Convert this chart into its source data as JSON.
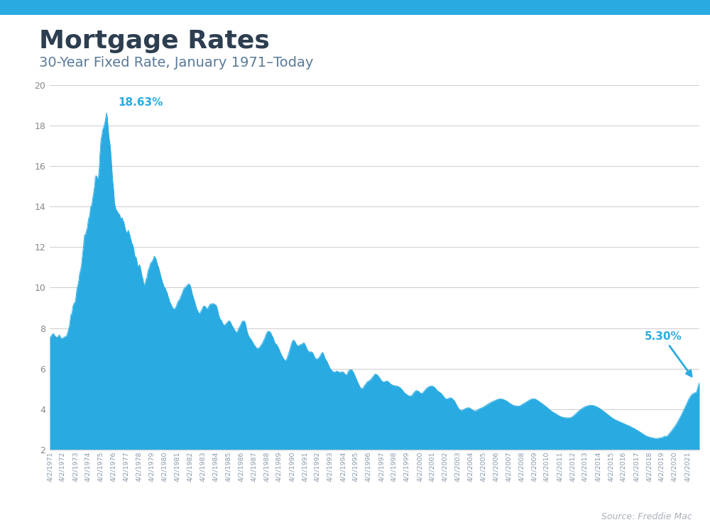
{
  "title": "Mortgage Rates",
  "subtitle": "30-Year Fixed Rate, January 1971–Today",
  "source": "Source: Freddie Mac",
  "fill_color": "#29ABE2",
  "line_color": "#29ABE2",
  "annotation_color": "#29ABE2",
  "title_color": "#2d3e50",
  "subtitle_color": "#5a7a99",
  "background_color": "#ffffff",
  "top_bar_color": "#29ABE2",
  "ylim": [
    2,
    20
  ],
  "yticks": [
    2,
    4,
    6,
    8,
    10,
    12,
    14,
    16,
    18,
    20
  ],
  "peak_label": "18.63%",
  "end_label": "5.30%",
  "rates": [
    7.54,
    7.54,
    7.59,
    7.66,
    7.68,
    7.71,
    7.73,
    7.65,
    7.61,
    7.58,
    7.55,
    7.54,
    7.56,
    7.62,
    7.64,
    7.66,
    7.55,
    7.52,
    7.49,
    7.49,
    7.51,
    7.53,
    7.56,
    7.55,
    7.6,
    7.6,
    7.64,
    7.78,
    7.87,
    8.0,
    8.14,
    8.41,
    8.65,
    8.68,
    8.81,
    9.06,
    9.17,
    9.24,
    9.23,
    9.35,
    9.63,
    9.91,
    10.04,
    10.19,
    10.36,
    10.65,
    10.79,
    10.91,
    11.1,
    11.42,
    11.74,
    12.01,
    12.42,
    12.62,
    12.5,
    12.77,
    12.83,
    12.97,
    13.24,
    13.44,
    13.49,
    13.74,
    13.98,
    14.04,
    14.15,
    14.41,
    14.56,
    14.84,
    15.0,
    15.44,
    15.53,
    15.51,
    15.41,
    15.37,
    15.54,
    15.93,
    16.58,
    17.07,
    17.4,
    17.51,
    17.78,
    17.87,
    17.95,
    18.09,
    18.24,
    18.45,
    18.63,
    18.45,
    18.04,
    17.64,
    17.35,
    17.14,
    16.81,
    16.37,
    15.9,
    15.35,
    15.04,
    14.67,
    14.16,
    14.05,
    13.87,
    13.85,
    13.74,
    13.74,
    13.67,
    13.62,
    13.6,
    13.43,
    13.43,
    13.44,
    13.43,
    13.27,
    13.27,
    13.11,
    12.95,
    12.82,
    12.73,
    12.72,
    12.77,
    12.84,
    12.71,
    12.63,
    12.45,
    12.38,
    12.2,
    12.16,
    12.08,
    11.93,
    11.7,
    11.55,
    11.5,
    11.48,
    11.3,
    11.07,
    11.06,
    11.11,
    11.13,
    11.0,
    10.87,
    10.68,
    10.52,
    10.44,
    10.22,
    10.09,
    10.2,
    10.28,
    10.45,
    10.46,
    10.7,
    10.84,
    10.94,
    11.02,
    11.15,
    11.23,
    11.25,
    11.3,
    11.37,
    11.41,
    11.55,
    11.52,
    11.47,
    11.4,
    11.27,
    11.13,
    11.06,
    10.97,
    10.84,
    10.72,
    10.58,
    10.47,
    10.35,
    10.23,
    10.16,
    10.05,
    9.98,
    9.98,
    9.86,
    9.8,
    9.72,
    9.57,
    9.49,
    9.35,
    9.27,
    9.2,
    9.15,
    9.06,
    9.01,
    8.97,
    8.95,
    8.95,
    8.98,
    9.04,
    9.12,
    9.21,
    9.3,
    9.36,
    9.39,
    9.44,
    9.53,
    9.62,
    9.68,
    9.78,
    9.87,
    9.94,
    9.98,
    10.01,
    10.04,
    10.09,
    10.11,
    10.15,
    10.17,
    10.18,
    10.13,
    10.08,
    9.95,
    9.81,
    9.65,
    9.56,
    9.44,
    9.34,
    9.24,
    9.12,
    8.99,
    8.92,
    8.86,
    8.77,
    8.72,
    8.73,
    8.77,
    8.85,
    8.9,
    8.97,
    9.04,
    9.09,
    9.09,
    9.07,
    9.04,
    8.98,
    8.95,
    8.96,
    9.05,
    9.07,
    9.15,
    9.2,
    9.17,
    9.18,
    9.2,
    9.22,
    9.2,
    9.19,
    9.16,
    9.14,
    9.12,
    9.02,
    8.91,
    8.75,
    8.63,
    8.51,
    8.44,
    8.41,
    8.37,
    8.28,
    8.22,
    8.17,
    8.14,
    8.14,
    8.19,
    8.23,
    8.26,
    8.29,
    8.33,
    8.36,
    8.35,
    8.32,
    8.27,
    8.18,
    8.12,
    8.07,
    8.0,
    7.95,
    7.9,
    7.83,
    7.78,
    7.8,
    7.84,
    7.9,
    7.98,
    8.05,
    8.11,
    8.17,
    8.25,
    8.32,
    8.35,
    8.34,
    8.35,
    8.33,
    8.24,
    8.1,
    7.94,
    7.81,
    7.71,
    7.61,
    7.57,
    7.5,
    7.47,
    7.42,
    7.37,
    7.31,
    7.26,
    7.19,
    7.14,
    7.1,
    7.07,
    7.01,
    6.99,
    7.0,
    7.02,
    7.03,
    7.07,
    7.12,
    7.17,
    7.22,
    7.27,
    7.34,
    7.41,
    7.47,
    7.55,
    7.65,
    7.73,
    7.79,
    7.85,
    7.84,
    7.83,
    7.82,
    7.79,
    7.73,
    7.65,
    7.59,
    7.53,
    7.44,
    7.33,
    7.25,
    7.22,
    7.19,
    7.16,
    7.09,
    7.04,
    6.96,
    6.87,
    6.79,
    6.72,
    6.65,
    6.6,
    6.54,
    6.49,
    6.44,
    6.41,
    6.39,
    6.44,
    6.5,
    6.6,
    6.69,
    6.79,
    6.91,
    7.02,
    7.14,
    7.25,
    7.33,
    7.39,
    7.41,
    7.38,
    7.34,
    7.28,
    7.21,
    7.16,
    7.13,
    7.12,
    7.13,
    7.16,
    7.17,
    7.19,
    7.2,
    7.22,
    7.24,
    7.27,
    7.26,
    7.22,
    7.14,
    7.07,
    6.99,
    6.91,
    6.87,
    6.84,
    6.83,
    6.82,
    6.83,
    6.83,
    6.8,
    6.77,
    6.7,
    6.64,
    6.56,
    6.5,
    6.48,
    6.47,
    6.48,
    6.5,
    6.53,
    6.57,
    6.62,
    6.68,
    6.73,
    6.79,
    6.8,
    6.75,
    6.65,
    6.56,
    6.49,
    6.43,
    6.37,
    6.33,
    6.25,
    6.18,
    6.09,
    6.02,
    5.98,
    5.94,
    5.91,
    5.86,
    5.83,
    5.84,
    5.83,
    5.83,
    5.85,
    5.88,
    5.87,
    5.85,
    5.84,
    5.83,
    5.81,
    5.81,
    5.83,
    5.85,
    5.84,
    5.82,
    5.8,
    5.77,
    5.71,
    5.69,
    5.7,
    5.73,
    5.8,
    5.87,
    5.91,
    5.93,
    5.94,
    5.94,
    5.93,
    5.9,
    5.85,
    5.78,
    5.72,
    5.64,
    5.56,
    5.49,
    5.41,
    5.33,
    5.26,
    5.19,
    5.12,
    5.07,
    5.03,
    5.01,
    5.01,
    5.05,
    5.09,
    5.14,
    5.19,
    5.24,
    5.28,
    5.32,
    5.36,
    5.38,
    5.39,
    5.41,
    5.44,
    5.47,
    5.51,
    5.55,
    5.6,
    5.64,
    5.68,
    5.72,
    5.73,
    5.72,
    5.7,
    5.67,
    5.64,
    5.59,
    5.55,
    5.5,
    5.45,
    5.41,
    5.37,
    5.35,
    5.34,
    5.34,
    5.36,
    5.37,
    5.38,
    5.38,
    5.38,
    5.36,
    5.33,
    5.3,
    5.27,
    5.24,
    5.22,
    5.2,
    5.18,
    5.17,
    5.16,
    5.15,
    5.15,
    5.14,
    5.14,
    5.13,
    5.12,
    5.1,
    5.08,
    5.06,
    5.04,
    5.0,
    4.97,
    4.93,
    4.88,
    4.84,
    4.8,
    4.77,
    4.75,
    4.72,
    4.71,
    4.68,
    4.66,
    4.65,
    4.64,
    4.65,
    4.66,
    4.68,
    4.71,
    4.76,
    4.81,
    4.85,
    4.88,
    4.9,
    4.91,
    4.91,
    4.9,
    4.88,
    4.85,
    4.81,
    4.79,
    4.78,
    4.78,
    4.79,
    4.82,
    4.86,
    4.9,
    4.94,
    4.98,
    5.01,
    5.04,
    5.07,
    5.09,
    5.11,
    5.12,
    5.13,
    5.14,
    5.14,
    5.13,
    5.12,
    5.1,
    5.08,
    5.05,
    5.01,
    4.97,
    4.93,
    4.9,
    4.88,
    4.85,
    4.83,
    4.81,
    4.78,
    4.75,
    4.71,
    4.67,
    4.62,
    4.58,
    4.54,
    4.52,
    4.5,
    4.5,
    4.5,
    4.52,
    4.54,
    4.55,
    4.56,
    4.55,
    4.54,
    4.52,
    4.49,
    4.45,
    4.42,
    4.37,
    4.31,
    4.25,
    4.19,
    4.13,
    4.07,
    4.02,
    3.98,
    3.95,
    3.93,
    3.93,
    3.93,
    3.95,
    3.97,
    3.99,
    4.01,
    4.03,
    4.04,
    4.05,
    4.06,
    4.07,
    4.07,
    4.06,
    4.04,
    4.02,
    4.0,
    3.97,
    3.95,
    3.93,
    3.92,
    3.91,
    3.91,
    3.92,
    3.93,
    3.95,
    3.97,
    3.99,
    4.01,
    4.03,
    4.04,
    4.05,
    4.07,
    4.08,
    4.1,
    4.12,
    4.14,
    4.16,
    4.18,
    4.2,
    4.22,
    4.24,
    4.26,
    4.28,
    4.3,
    4.32,
    4.34,
    4.35,
    4.37,
    4.38,
    4.4,
    4.41,
    4.43,
    4.44,
    4.46,
    4.47,
    4.48,
    4.49,
    4.5,
    4.5,
    4.5,
    4.5,
    4.49,
    4.49,
    4.48,
    4.47,
    4.45,
    4.44,
    4.42,
    4.41,
    4.38,
    4.36,
    4.33,
    4.31,
    4.29,
    4.27,
    4.25,
    4.23,
    4.21,
    4.19,
    4.18,
    4.17,
    4.16,
    4.16,
    4.15,
    4.15,
    4.14,
    4.14,
    4.15,
    4.16,
    4.17,
    4.19,
    4.21,
    4.23,
    4.25,
    4.27,
    4.29,
    4.31,
    4.33,
    4.35,
    4.37,
    4.39,
    4.41,
    4.43,
    4.45,
    4.47,
    4.48,
    4.49,
    4.5,
    4.51,
    4.51,
    4.51,
    4.5,
    4.49,
    4.47,
    4.45,
    4.43,
    4.41,
    4.39,
    4.36,
    4.34,
    4.32,
    4.29,
    4.27,
    4.25,
    4.22,
    4.2,
    4.17,
    4.15,
    4.12,
    4.1,
    4.07,
    4.04,
    4.01,
    3.98,
    3.95,
    3.93,
    3.9,
    3.88,
    3.86,
    3.84,
    3.82,
    3.8,
    3.78,
    3.76,
    3.74,
    3.72,
    3.7,
    3.68,
    3.66,
    3.65,
    3.63,
    3.62,
    3.61,
    3.6,
    3.59,
    3.58,
    3.58,
    3.57,
    3.57,
    3.57,
    3.57,
    3.57,
    3.57,
    3.57,
    3.57,
    3.58,
    3.59,
    3.61,
    3.63,
    3.65,
    3.68,
    3.71,
    3.74,
    3.77,
    3.8,
    3.83,
    3.86,
    3.89,
    3.92,
    3.95,
    3.97,
    4.0,
    4.02,
    4.04,
    4.06,
    4.08,
    4.1,
    4.11,
    4.13,
    4.14,
    4.15,
    4.16,
    4.17,
    4.18,
    4.18,
    4.19,
    4.19,
    4.18,
    4.18,
    4.18,
    4.17,
    4.16,
    4.15,
    4.14,
    4.12,
    4.11,
    4.09,
    4.07,
    4.06,
    4.03,
    4.01,
    3.99,
    3.96,
    3.94,
    3.92,
    3.89,
    3.87,
    3.84,
    3.82,
    3.79,
    3.77,
    3.74,
    3.72,
    3.69,
    3.66,
    3.64,
    3.61,
    3.59,
    3.56,
    3.54,
    3.52,
    3.5,
    3.48,
    3.47,
    3.45,
    3.44,
    3.42,
    3.41,
    3.39,
    3.38,
    3.36,
    3.35,
    3.34,
    3.32,
    3.31,
    3.29,
    3.28,
    3.26,
    3.25,
    3.23,
    3.22,
    3.2,
    3.19,
    3.18,
    3.16,
    3.15,
    3.13,
    3.11,
    3.1,
    3.08,
    3.06,
    3.05,
    3.03,
    3.01,
    2.99,
    2.97,
    2.95,
    2.93,
    2.91,
    2.89,
    2.87,
    2.85,
    2.83,
    2.81,
    2.78,
    2.76,
    2.74,
    2.72,
    2.7,
    2.68,
    2.67,
    2.65,
    2.64,
    2.63,
    2.62,
    2.61,
    2.6,
    2.59,
    2.58,
    2.58,
    2.57,
    2.56,
    2.56,
    2.55,
    2.55,
    2.55,
    2.55,
    2.55,
    2.56,
    2.56,
    2.57,
    2.57,
    2.58,
    2.59,
    2.6,
    2.62,
    2.63,
    2.65,
    2.66,
    2.65,
    2.65,
    2.66,
    2.69,
    2.73,
    2.77,
    2.81,
    2.85,
    2.89,
    2.93,
    2.97,
    3.02,
    3.06,
    3.11,
    3.15,
    3.2,
    3.25,
    3.3,
    3.36,
    3.42,
    3.48,
    3.54,
    3.6,
    3.66,
    3.73,
    3.79,
    3.86,
    3.93,
    4.0,
    4.07,
    4.14,
    4.21,
    4.28,
    4.35,
    4.42,
    4.49,
    4.55,
    4.6,
    4.65,
    4.69,
    4.72,
    4.75,
    4.77,
    4.79,
    4.8,
    4.81,
    4.82,
    4.87,
    4.98,
    5.1,
    5.22,
    5.3
  ]
}
